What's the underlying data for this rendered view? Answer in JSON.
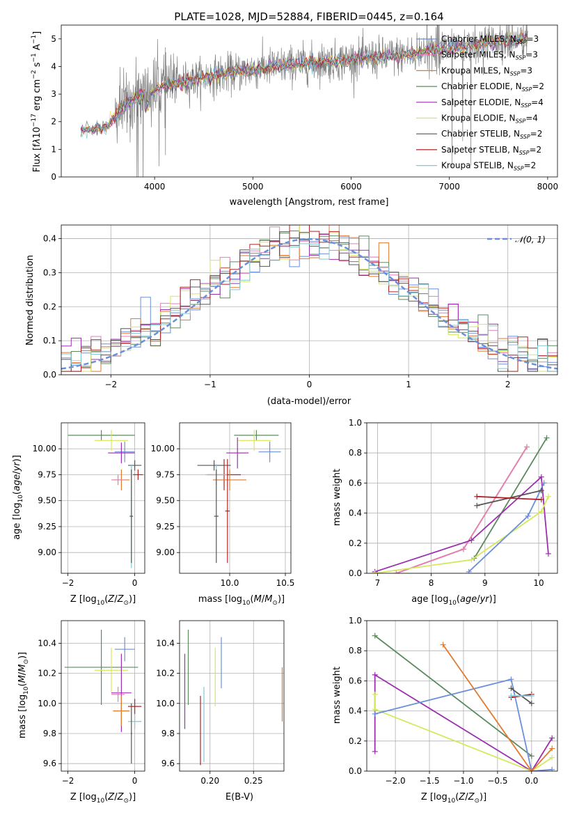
{
  "figure_title": "PLATE=1028, MJD=52884, FIBERID=0445, z=0.164",
  "colors": {
    "chabrier_miles": "#6a8fdb",
    "salpeter_miles": "#e37fb8",
    "kroupa_miles": "#e07a2f",
    "chabrier_elodie": "#5b8a5e",
    "salpeter_elodie": "#9b2fae",
    "kroupa_elodie": "#d4e85a",
    "chabrier_stelib": "#555555",
    "salpeter_stelib": "#b22222",
    "kroupa_stelib": "#7fc8d8",
    "data": "#808080",
    "normal": "#6a8fdb"
  },
  "chart_data": [
    {
      "id": "spectrum",
      "type": "line",
      "title": "PLATE=1028, MJD=52884, FIBERID=0445, z=0.164",
      "xlabel": "wavelength [Angstrom, rest frame]",
      "ylabel": "Flux [f_λ 10^-17 erg cm^-2 s^-1 A^-1]",
      "xlim": [
        3050,
        8100
      ],
      "ylim": [
        0,
        5.5
      ],
      "xticks": [
        4000,
        5000,
        6000,
        7000,
        8000
      ],
      "yticks": [
        0,
        1,
        2,
        3,
        4,
        5
      ],
      "grid": false,
      "legend_position": "top-right",
      "continuum": {
        "x": [
          3250,
          3500,
          3700,
          3900,
          4100,
          4500,
          5000,
          5500,
          6000,
          6500,
          7000,
          7500,
          7800
        ],
        "y": [
          1.7,
          1.8,
          2.6,
          3.0,
          3.3,
          3.6,
          3.9,
          4.1,
          4.25,
          4.4,
          4.65,
          4.9,
          5.0
        ]
      },
      "legend": [
        "Chabrier MILES, N_SSP=3",
        "Salpeter MILES, N_SSP=3",
        "Kroupa MILES, N_SSP=3",
        "Chabrier ELODIE, N_SSP=2",
        "Salpeter ELODIE, N_SSP=4",
        "Kroupa ELODIE, N_SSP=4",
        "Chabrier STELIB, N_SSP=2",
        "Salpeter STELIB, N_SSP=2",
        "Kroupa STELIB, N_SSP=2"
      ]
    },
    {
      "id": "residuals",
      "type": "line",
      "xlabel": "(data-model)/error",
      "ylabel": "Normed distribution",
      "xlim": [
        -2.5,
        2.5
      ],
      "ylim": [
        0,
        0.44
      ],
      "xticks": [
        -2,
        -1,
        0,
        1,
        2
      ],
      "yticks": [
        0.0,
        0.1,
        0.2,
        0.3,
        0.4
      ],
      "grid": true,
      "legend_position": "top-right",
      "legend": [
        "𝒩(0, 1)"
      ]
    },
    {
      "id": "age_vs_Z",
      "type": "scatter",
      "xlabel": "Z [log10(Z/Z⊙)]",
      "ylabel": "age  [log10(age/yr)]",
      "xlim": [
        -2.2,
        0.3
      ],
      "ylim": [
        8.8,
        10.25
      ],
      "xticks": [
        -2,
        0
      ],
      "yticks": [
        9.0,
        9.25,
        9.5,
        9.75,
        10.0
      ],
      "grid": true,
      "points": [
        {
          "s": "chabrier_elodie",
          "x": -1.0,
          "y": 10.13,
          "xe": 1.0,
          "ye": 0.05
        },
        {
          "s": "kroupa_elodie",
          "x": -0.7,
          "y": 10.08,
          "xe": 0.5,
          "ye": 0.1
        },
        {
          "s": "chabrier_miles",
          "x": -0.3,
          "y": 9.97,
          "xe": 0.3,
          "ye": 0.1
        },
        {
          "s": "salpeter_elodie",
          "x": -0.4,
          "y": 9.96,
          "xe": 0.4,
          "ye": 0.1
        },
        {
          "s": "chabrier_stelib",
          "x": 0.0,
          "y": 9.84,
          "xe": 0.2,
          "ye": 0.05
        },
        {
          "s": "salpeter_stelib",
          "x": 0.1,
          "y": 9.75,
          "xe": 0.15,
          "ye": 0.05
        },
        {
          "s": "kroupa_miles",
          "x": -0.4,
          "y": 9.7,
          "xe": 0.25,
          "ye": 0.1
        },
        {
          "s": "salpeter_miles",
          "x": -0.5,
          "y": 9.7,
          "xe": 0.2,
          "ye": 0.05
        },
        {
          "s": "kroupa_stelib",
          "x": -0.1,
          "y": 9.35,
          "xe": 0.05,
          "ye": 0.5
        },
        {
          "s": "chabrier_stelib",
          "x": -0.1,
          "y": 9.35,
          "xe": 0.05,
          "ye": 0.45
        }
      ]
    },
    {
      "id": "age_vs_mass",
      "type": "scatter",
      "xlabel": "mass [log10(M/M⊙)]",
      "ylabel": "",
      "xlim": [
        9.55,
        10.55
      ],
      "ylim": [
        8.8,
        10.25
      ],
      "xticks": [
        10.0,
        10.5
      ],
      "yticks": [
        9.0,
        9.25,
        9.5,
        9.75,
        10.0
      ],
      "grid": true,
      "points": [
        {
          "s": "chabrier_elodie",
          "x": 10.24,
          "y": 10.13,
          "xe": 0.2,
          "ye": 0.05
        },
        {
          "s": "kroupa_elodie",
          "x": 10.22,
          "y": 10.08,
          "xe": 0.15,
          "ye": 0.1
        },
        {
          "s": "chabrier_miles",
          "x": 10.36,
          "y": 9.97,
          "xe": 0.1,
          "ye": 0.1
        },
        {
          "s": "salpeter_elodie",
          "x": 10.07,
          "y": 9.96,
          "xe": 0.1,
          "ye": 0.15
        },
        {
          "s": "chabrier_stelib",
          "x": 9.86,
          "y": 9.84,
          "xe": 0.15,
          "ye": 0.05
        },
        {
          "s": "salpeter_stelib",
          "x": 9.95,
          "y": 9.75,
          "xe": 0.15,
          "ye": 0.15
        },
        {
          "s": "kroupa_miles",
          "x": 10.0,
          "y": 9.7,
          "xe": 0.15,
          "ye": 0.1
        },
        {
          "s": "kroupa_stelib",
          "x": 9.88,
          "y": 9.75,
          "xe": 0.1,
          "ye": 0.1
        },
        {
          "s": "chabrier_stelib",
          "x": 9.88,
          "y": 9.35,
          "xe": 0.02,
          "ye": 0.45
        },
        {
          "s": "salpeter_stelib",
          "x": 9.98,
          "y": 9.4,
          "xe": 0.02,
          "ye": 0.5
        }
      ]
    },
    {
      "id": "weight_vs_age",
      "type": "line",
      "xlabel": "age  [log10(age/yr)]",
      "ylabel": "mass weight",
      "xlim": [
        6.8,
        10.35
      ],
      "ylim": [
        0.0,
        1.0
      ],
      "xticks": [
        7,
        8,
        9,
        10
      ],
      "yticks": [
        0.0,
        0.2,
        0.4,
        0.6,
        0.8,
        1.0
      ],
      "grid": true,
      "series": [
        {
          "s": "kroupa_miles",
          "x": [
            7.35,
            8.6,
            9.78
          ],
          "y": [
            0.0,
            0.16,
            0.84
          ]
        },
        {
          "s": "salpeter_miles",
          "x": [
            7.35,
            8.6,
            9.78
          ],
          "y": [
            0.0,
            0.16,
            0.84
          ]
        },
        {
          "s": "chabrier_elodie",
          "x": [
            8.8,
            10.15
          ],
          "y": [
            0.1,
            0.9
          ]
        },
        {
          "s": "salpeter_elodie",
          "x": [
            6.95,
            8.75,
            10.05,
            10.18
          ],
          "y": [
            0.01,
            0.22,
            0.64,
            0.13
          ]
        },
        {
          "s": "kroupa_elodie",
          "x": [
            6.95,
            8.75,
            10.05,
            10.18
          ],
          "y": [
            0.0,
            0.09,
            0.41,
            0.51
          ]
        },
        {
          "s": "chabrier_miles",
          "x": [
            8.7,
            9.8,
            10.1
          ],
          "y": [
            0.01,
            0.38,
            0.6
          ]
        },
        {
          "s": "chabrier_stelib",
          "x": [
            8.85,
            10.05
          ],
          "y": [
            0.45,
            0.55
          ]
        },
        {
          "s": "salpeter_stelib",
          "x": [
            8.85,
            10.05
          ],
          "y": [
            0.51,
            0.49
          ]
        }
      ]
    },
    {
      "id": "mass_vs_Z",
      "type": "scatter",
      "xlabel": "Z [log10(Z/Z⊙)]",
      "ylabel": "mass [log10(M/M⊙)]",
      "xlim": [
        -2.2,
        0.3
      ],
      "ylim": [
        9.55,
        10.55
      ],
      "xticks": [
        -2,
        0
      ],
      "yticks": [
        9.6,
        9.8,
        10.0,
        10.2,
        10.4
      ],
      "grid": true,
      "points": [
        {
          "s": "chabrier_elodie",
          "x": -1.0,
          "y": 10.24,
          "xe": 1.1,
          "ye": 0.25
        },
        {
          "s": "kroupa_elodie",
          "x": -0.7,
          "y": 10.22,
          "xe": 0.5,
          "ye": 0.15
        },
        {
          "s": "chabrier_miles",
          "x": -0.3,
          "y": 10.36,
          "xe": 0.3,
          "ye": 0.08
        },
        {
          "s": "salpeter_elodie",
          "x": -0.4,
          "y": 10.07,
          "xe": 0.3,
          "ye": 0.26
        },
        {
          "s": "salpeter_miles",
          "x": -0.5,
          "y": 10.06,
          "xe": 0.2,
          "ye": 0.05
        },
        {
          "s": "kroupa_miles",
          "x": -0.4,
          "y": 9.95,
          "xe": 0.25,
          "ye": 0.1
        },
        {
          "s": "salpeter_stelib",
          "x": 0.0,
          "y": 9.98,
          "xe": 0.2,
          "ye": 0.05
        },
        {
          "s": "kroupa_stelib",
          "x": 0.0,
          "y": 9.88,
          "xe": 0.2,
          "ye": 0.05
        },
        {
          "s": "chabrier_stelib",
          "x": -0.1,
          "y": 9.8,
          "xe": 0.02,
          "ye": 0.2
        }
      ]
    },
    {
      "id": "mass_vs_ebv",
      "type": "scatter",
      "xlabel": "E(B-V)",
      "ylabel": "",
      "xlim": [
        0.165,
        0.285
      ],
      "ylim": [
        9.55,
        10.55
      ],
      "xticks": [
        0.2,
        0.25
      ],
      "yticks": [
        9.6,
        9.8,
        10.0,
        10.2,
        10.4
      ],
      "grid": true,
      "vlines": [
        {
          "s": "salpeter_elodie",
          "x": 0.171,
          "y0": 9.83,
          "y1": 10.33
        },
        {
          "s": "chabrier_elodie",
          "x": 0.175,
          "y0": 9.99,
          "y1": 10.49
        },
        {
          "s": "salpeter_stelib",
          "x": 0.189,
          "y0": 9.59,
          "y1": 10.05
        },
        {
          "s": "kroupa_stelib",
          "x": 0.193,
          "y0": 9.61,
          "y1": 10.11
        },
        {
          "s": "kroupa_elodie",
          "x": 0.206,
          "y0": 9.98,
          "y1": 10.37
        },
        {
          "s": "chabrier_miles",
          "x": 0.213,
          "y0": 10.1,
          "y1": 10.44
        },
        {
          "s": "kroupa_miles",
          "x": 0.283,
          "y0": 9.88,
          "y1": 10.24
        }
      ]
    },
    {
      "id": "weight_vs_Z",
      "type": "line",
      "xlabel": "Z [log10(Z/Z⊙)]",
      "ylabel": "mass weight",
      "xlim": [
        -2.42,
        0.38
      ],
      "ylim": [
        0.0,
        1.0
      ],
      "xticks": [
        -2.0,
        -1.5,
        -1.0,
        -0.5,
        0.0
      ],
      "yticks": [
        0.0,
        0.2,
        0.4,
        0.6,
        0.8,
        1.0
      ],
      "grid": true,
      "series": [
        {
          "s": "chabrier_elodie",
          "x": [
            -2.3,
            0.0
          ],
          "y": [
            0.9,
            0.1
          ]
        },
        {
          "s": "salpeter_elodie",
          "x": [
            -2.3,
            -2.3,
            0.0,
            0.3
          ],
          "y": [
            0.13,
            0.64,
            0.0,
            0.22
          ]
        },
        {
          "s": "kroupa_elodie",
          "x": [
            -2.3,
            -2.3,
            0.0,
            0.3
          ],
          "y": [
            0.51,
            0.41,
            0.0,
            0.09
          ]
        },
        {
          "s": "chabrier_miles",
          "x": [
            -2.3,
            -0.3,
            0.0,
            0.3
          ],
          "y": [
            0.38,
            0.61,
            0.0,
            0.01
          ]
        },
        {
          "s": "kroupa_miles",
          "x": [
            -1.3,
            0.0,
            0.3
          ],
          "y": [
            0.84,
            0.0,
            0.15
          ]
        },
        {
          "s": "chabrier_stelib",
          "x": [
            -0.3,
            0.0
          ],
          "y": [
            0.55,
            0.45
          ]
        },
        {
          "s": "salpeter_stelib",
          "x": [
            -0.3,
            0.0
          ],
          "y": [
            0.49,
            0.51
          ]
        },
        {
          "s": "kroupa_stelib",
          "x": [
            -0.3,
            0.0
          ],
          "y": [
            0.5,
            0.5
          ]
        }
      ]
    }
  ]
}
